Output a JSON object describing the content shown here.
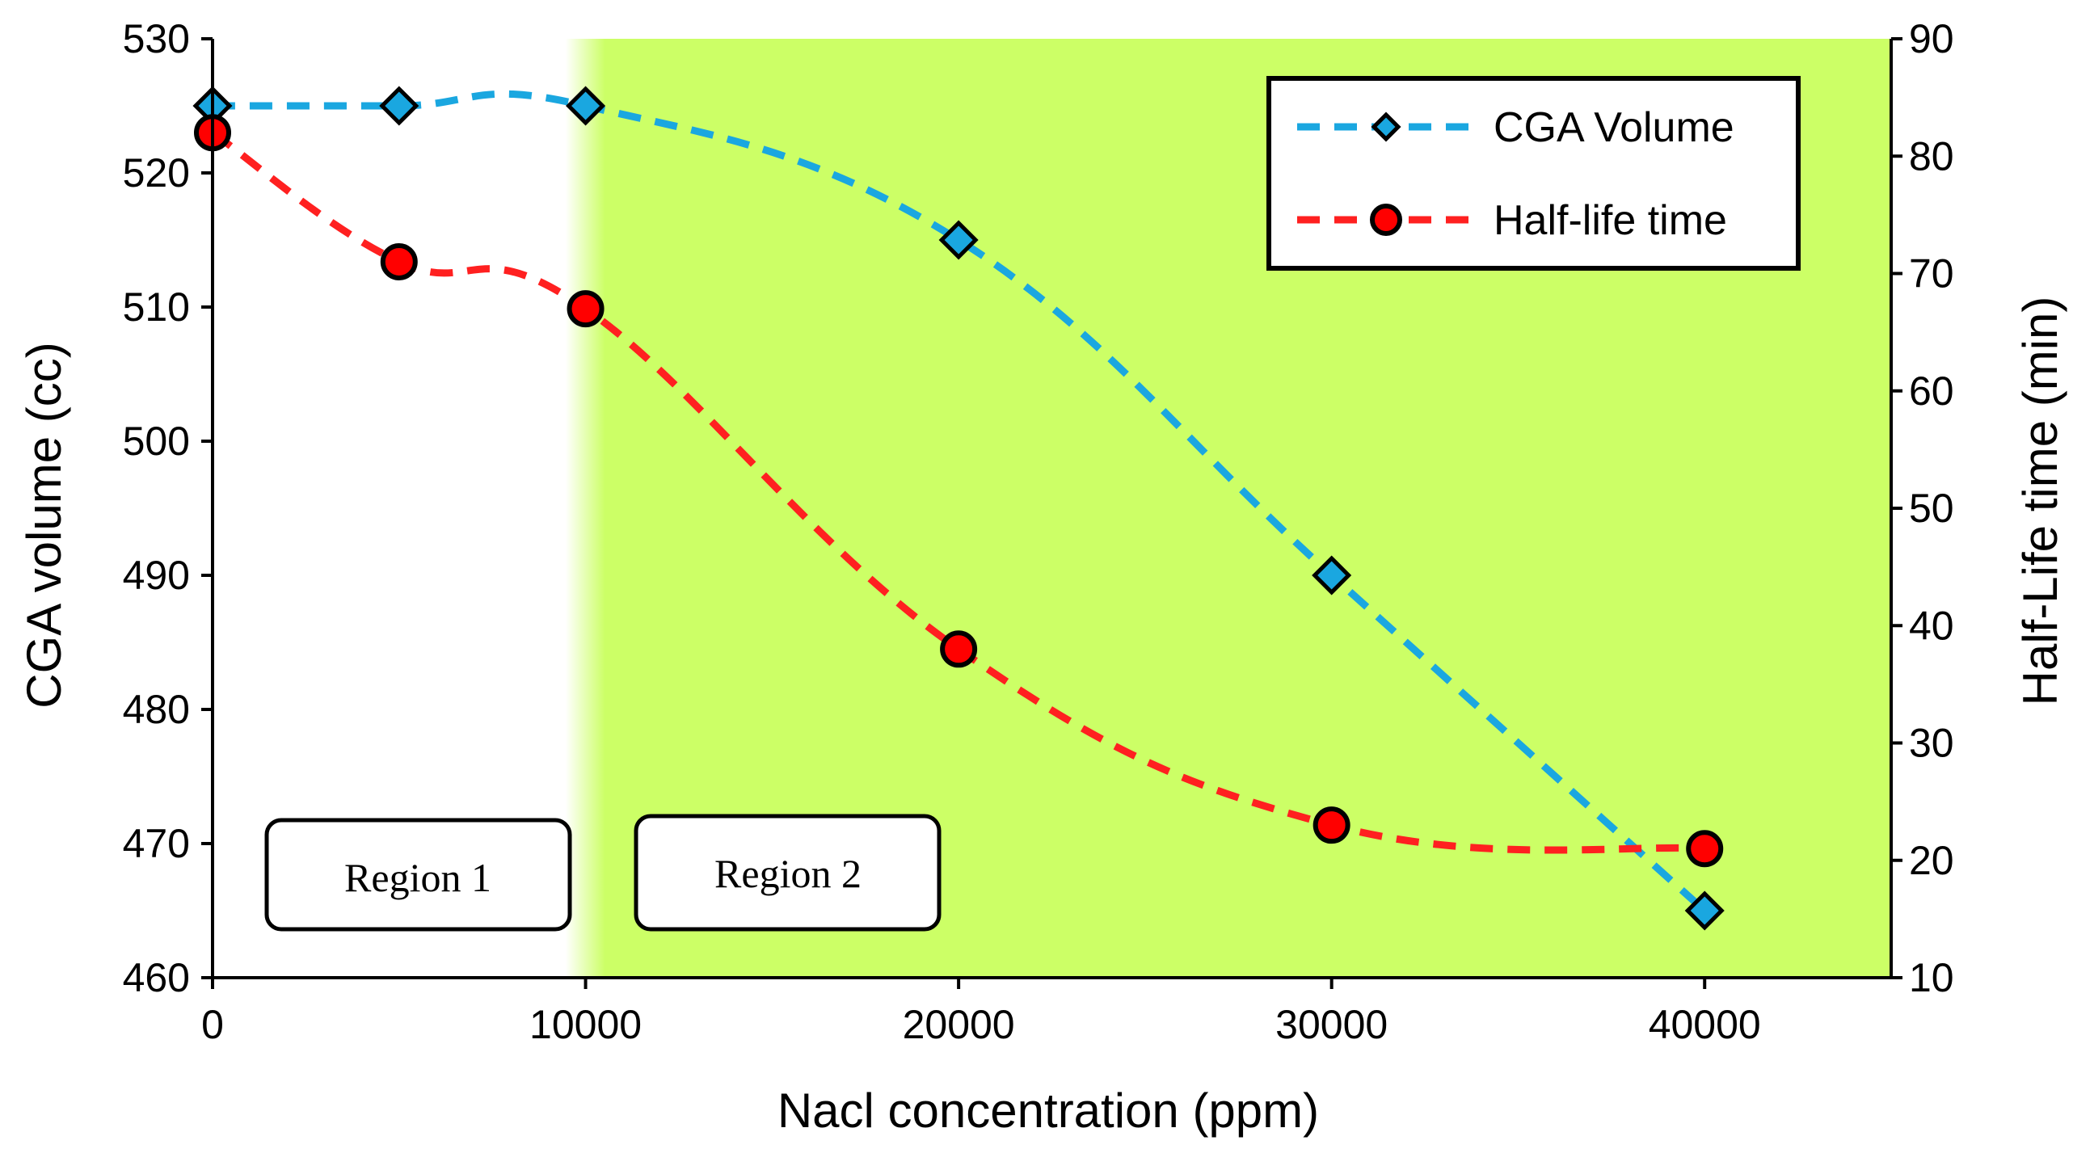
{
  "chart_data": {
    "type": "line",
    "title": "",
    "xlabel": "Nacl concentration (ppm)",
    "ylabel": "CGA volume (cc)",
    "y2label": "Half-Life time (min)",
    "xlim": [
      0,
      45000
    ],
    "ylim": [
      460,
      530
    ],
    "y2lim": [
      10,
      90
    ],
    "x_ticks": [
      0,
      10000,
      20000,
      30000,
      40000
    ],
    "y_ticks": [
      460,
      470,
      480,
      490,
      500,
      510,
      520,
      530
    ],
    "y2_ticks": [
      10,
      20,
      30,
      40,
      50,
      60,
      70,
      80,
      90
    ],
    "x": [
      0,
      5000,
      10000,
      20000,
      30000,
      40000
    ],
    "series": [
      {
        "name": "CGA Volume",
        "axis": "left",
        "marker": "diamond",
        "color": "#1aa7e0",
        "values": [
          525,
          525,
          525,
          515,
          490,
          465
        ]
      },
      {
        "name": "Half-life time",
        "axis": "right",
        "marker": "circle",
        "color": "#ff2020",
        "values": [
          82,
          71,
          67,
          38,
          23,
          21
        ]
      }
    ],
    "shaded_region": {
      "x_start": 10000,
      "x_end": 45000,
      "color": "#ccff66"
    },
    "annotations": [
      "Region 1",
      "Region 2"
    ],
    "legend_position": "top-right",
    "grid": false
  }
}
